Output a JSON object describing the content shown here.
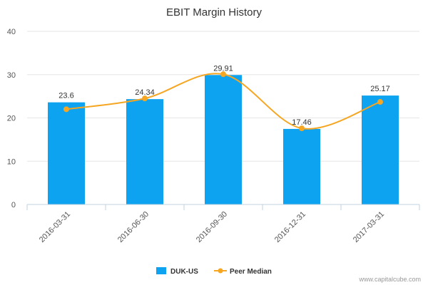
{
  "chart_data": {
    "type": "bar",
    "title": "EBIT Margin History",
    "categories": [
      "2016-03-31",
      "2016-06-30",
      "2016-09-30",
      "2016-12-31",
      "2017-03-31"
    ],
    "series": [
      {
        "name": "DUK-US",
        "kind": "bar",
        "color": "#0da3f0",
        "values": [
          23.6,
          24.34,
          29.91,
          17.46,
          25.17
        ],
        "labels": [
          "23.6",
          "24.34",
          "29.91",
          "17.46",
          "25.17"
        ]
      },
      {
        "name": "Peer Median",
        "kind": "line",
        "smooth": true,
        "color": "#f5a623",
        "values": [
          22.0,
          24.5,
          30.1,
          17.6,
          23.7
        ]
      }
    ],
    "yticks": [
      0,
      10,
      20,
      30,
      40
    ],
    "ylim": [
      0,
      40
    ],
    "grid": true,
    "legend": "bottom-center",
    "credit": "www.capitalcube.com"
  }
}
